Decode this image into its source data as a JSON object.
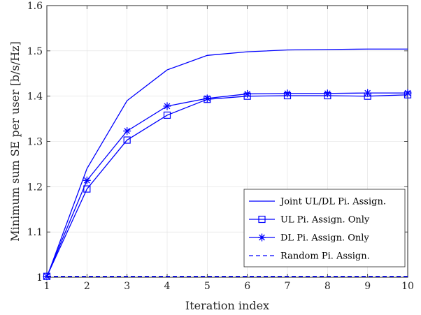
{
  "chart_data": {
    "type": "line",
    "title": "",
    "xlabel": "Iteration index",
    "ylabel": "Minimum sum SE per user [b/s/Hz]",
    "xlim": [
      1,
      10
    ],
    "ylim": [
      1,
      1.6
    ],
    "xticks": [
      "1",
      "2",
      "3",
      "4",
      "5",
      "6",
      "7",
      "8",
      "9",
      "10"
    ],
    "yticks": [
      "1",
      "1.1",
      "1.2",
      "1.3",
      "1.4",
      "1.5",
      "1.6"
    ],
    "grid": true,
    "legend_position": "bottom-right",
    "x": [
      1,
      2,
      3,
      4,
      5,
      6,
      7,
      8,
      9,
      10
    ],
    "series": [
      {
        "name": "Joint UL/DL Pi. Assign.",
        "marker": "none",
        "dash": "solid",
        "values": [
          1.0,
          1.24,
          1.39,
          1.458,
          1.49,
          1.498,
          1.502,
          1.503,
          1.504,
          1.504
        ]
      },
      {
        "name": "UL Pi. Assign. Only",
        "marker": "square",
        "dash": "solid",
        "values": [
          1.002,
          1.195,
          1.303,
          1.358,
          1.393,
          1.4,
          1.401,
          1.401,
          1.4,
          1.403
        ]
      },
      {
        "name": "DL Pi. Assign. Only",
        "marker": "asterisk",
        "dash": "solid",
        "values": [
          1.002,
          1.214,
          1.323,
          1.378,
          1.395,
          1.405,
          1.406,
          1.406,
          1.407,
          1.407
        ]
      },
      {
        "name": "Random Pi. Assign.",
        "marker": "none",
        "dash": "dashed",
        "values": [
          1.002,
          1.002,
          1.002,
          1.002,
          1.002,
          1.002,
          1.002,
          1.002,
          1.002,
          1.002
        ]
      }
    ],
    "colors": {
      "line": "#0000ff",
      "axis": "#262626",
      "grid": "#dfdfdf"
    }
  }
}
